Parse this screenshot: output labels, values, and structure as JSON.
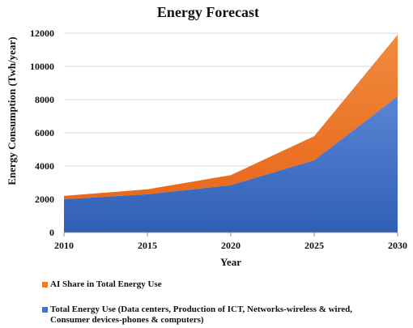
{
  "chart_data": {
    "type": "area",
    "stacked": true,
    "title": "Energy Forecast",
    "xlabel": "Year",
    "ylabel": "Energy Consumption (Twh/year)",
    "x": [
      2010,
      2015,
      2020,
      2025,
      2030
    ],
    "xticks": [
      "2010",
      "2015",
      "2020",
      "2025",
      "2030"
    ],
    "yticks": [
      "0",
      "2000",
      "4000",
      "6000",
      "8000",
      "10000",
      "12000"
    ],
    "ylim": [
      0,
      12000
    ],
    "grid": true,
    "legend_position": "bottom",
    "series": [
      {
        "name": "Total Energy Use (Data centers, Production of ICT, Networks-wireless & wired, Consumer devices-phones & computers)",
        "values": [
          2000,
          2300,
          2850,
          4350,
          8200
        ],
        "color": "#4472c4"
      },
      {
        "name": "AI Share in Total Energy Use",
        "values": [
          200,
          300,
          600,
          1450,
          3700
        ],
        "color": "#ed7d31"
      }
    ],
    "legend_order": [
      1,
      0
    ]
  }
}
